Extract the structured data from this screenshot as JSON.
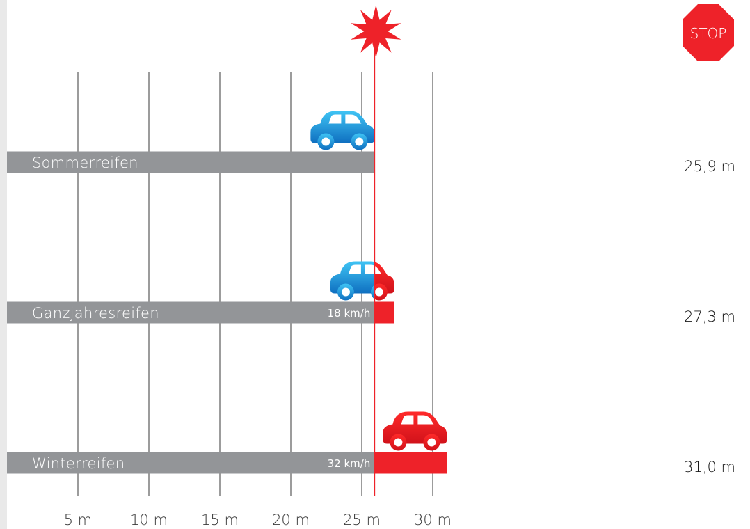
{
  "stop_sign": {
    "text": "STOP",
    "color": "#ee2229"
  },
  "chart_data": {
    "type": "bar",
    "orientation": "horizontal",
    "categories": [
      "Sommerreifen",
      "Ganzjahresreifen",
      "Winterreifen"
    ],
    "values": [
      25.9,
      27.3,
      31.0
    ],
    "value_labels": [
      "25,9 m",
      "27,3 m",
      "31,0 m"
    ],
    "impact_speed_labels": [
      "",
      "18 km/h",
      "32 km/h"
    ],
    "reference_distance": 25.9,
    "x_ticks": [
      5,
      10,
      15,
      20,
      25,
      30
    ],
    "x_tick_labels": [
      "5 m",
      "10 m",
      "15 m",
      "20 m",
      "25 m",
      "30 m"
    ],
    "xlim": [
      0,
      31.3
    ],
    "grid": true,
    "colors": {
      "bar": "#939598",
      "overrun": "#ee2229",
      "car_safe": "#1aa0e0",
      "car_crash": "#ee2229",
      "reference_line": "#ee2229"
    }
  }
}
